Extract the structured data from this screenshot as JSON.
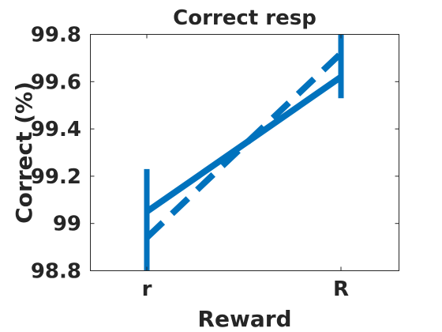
{
  "chart_data": {
    "type": "line",
    "title": "Correct resp",
    "xlabel": "Reward",
    "ylabel": "Correct (%)",
    "categories": [
      "r",
      "R"
    ],
    "ylim": [
      98.8,
      99.8
    ],
    "yticks": [
      "98.8",
      "99",
      "99.2",
      "99.4",
      "99.6",
      "99.8"
    ],
    "grid": false,
    "series": [
      {
        "style": "solid",
        "values": [
          99.05,
          99.62
        ],
        "error_low": [
          98.78,
          99.53
        ],
        "error_high": [
          99.23,
          99.81
        ]
      },
      {
        "style": "dashed",
        "values": [
          98.94,
          99.72
        ]
      }
    ],
    "color": "#0072BD"
  }
}
